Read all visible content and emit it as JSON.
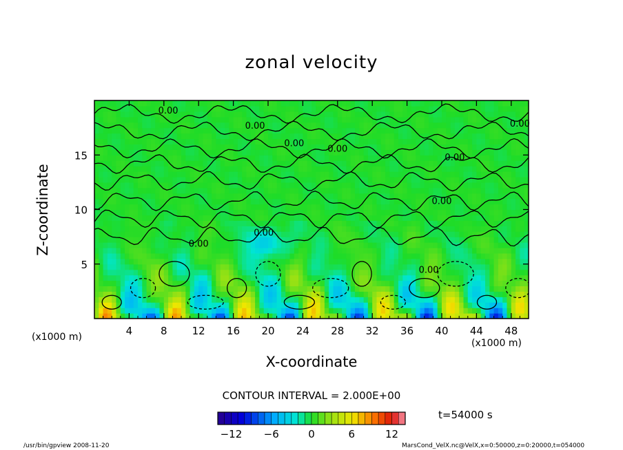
{
  "chart_data": {
    "type": "heatmap",
    "title": "zonal velocity",
    "xlabel": "X-coordinate",
    "ylabel": "Z-coordinate",
    "x_unit": "(x1000 m)",
    "xlim": [
      0,
      50
    ],
    "ylim": [
      0,
      20
    ],
    "x_ticks": [
      4,
      8,
      12,
      16,
      20,
      24,
      28,
      32,
      36,
      40,
      44,
      48
    ],
    "y_ticks": [
      5,
      10,
      15
    ],
    "contour_interval_text": "CONTOUR INTERVAL = 2.000E+00",
    "contour_labels": [
      {
        "text": "0.00",
        "x": 8.5,
        "z": 18.8
      },
      {
        "text": "0.00",
        "x": 18.5,
        "z": 17.4
      },
      {
        "text": "0.00",
        "x": 23.0,
        "z": 15.8
      },
      {
        "text": "0.00",
        "x": 28.0,
        "z": 15.3
      },
      {
        "text": "0.00",
        "x": 41.5,
        "z": 14.5
      },
      {
        "text": "0.00",
        "x": 49.0,
        "z": 17.6
      },
      {
        "text": "0.00",
        "x": 40.0,
        "z": 10.5
      },
      {
        "text": "0.00",
        "x": 19.5,
        "z": 7.6
      },
      {
        "text": "0.00",
        "x": 12.0,
        "z": 6.6
      },
      {
        "text": "0.00",
        "x": 38.5,
        "z": 4.2
      }
    ],
    "colorbar": {
      "range": [
        -14,
        14
      ],
      "step": 1,
      "tick_labels": [
        "−12",
        "−6",
        "0",
        "6",
        "12"
      ],
      "tick_values": [
        -12,
        -6,
        0,
        6,
        12
      ]
    },
    "grid": false
  },
  "time_label": "t=54000 s",
  "footer": {
    "left": "/usr/bin/gpview  2008-11-20",
    "right": "MarsCond_VelX.nc@VelX,x=0:50000,z=0:20000,t=054000"
  }
}
